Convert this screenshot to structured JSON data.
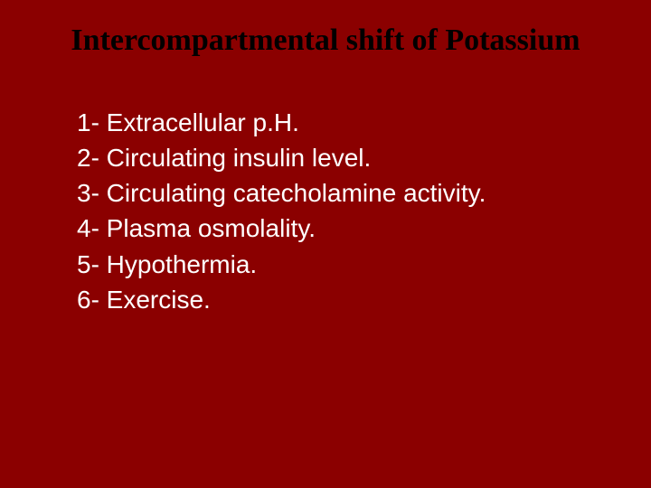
{
  "slide": {
    "background_color": "#8b0000",
    "title": {
      "text": "Intercompartmental  shift of Potassium",
      "color": "#000000",
      "font_size": 34,
      "font_weight": "bold",
      "font_family": "Georgia, serif"
    },
    "list": {
      "color": "#ffffff",
      "font_size": 28,
      "font_family": "Verdana, sans-serif",
      "items": [
        {
          "number": "1-",
          "text": " Extracellular p.H."
        },
        {
          "number": "2-",
          "text": " Circulating insulin level."
        },
        {
          "number": "3-",
          "text": " Circulating catecholamine activity."
        },
        {
          "number": "4-",
          "text": " Plasma osmolality."
        },
        {
          "number": "5-",
          "text": " Hypothermia."
        },
        {
          "number": "6-",
          "text": " Exercise."
        }
      ]
    }
  }
}
